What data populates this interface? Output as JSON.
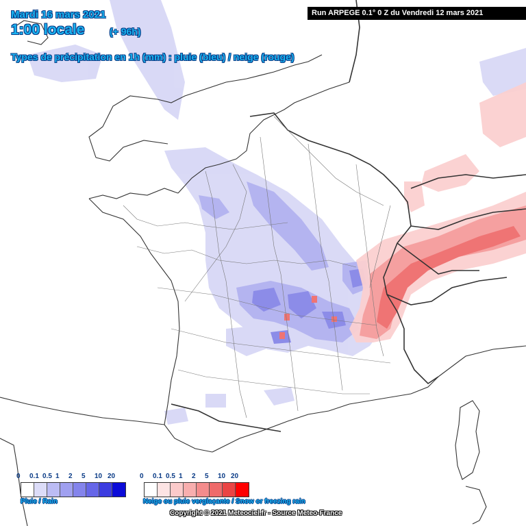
{
  "header": {
    "date": "Mardi 16 mars 2021",
    "time": "1:00 locale",
    "offset": "(+ 96h)",
    "subtitle": "Types de précipitation en 1h (mm) : pluie (bleu) / neige (rouge)"
  },
  "run_info": "Run ARPEGE 0.1° 0 Z du Vendredi 12 mars 2021",
  "legend": {
    "rain": {
      "label": "Pluie / Rain",
      "ticks": [
        "0",
        "0.1",
        "0.5",
        "1",
        "2",
        "5",
        "10",
        "20"
      ],
      "colors": [
        "#ffffff",
        "#dcdcf8",
        "#bcbcf4",
        "#a0a0f0",
        "#8484ec",
        "#6666e8",
        "#3c3ce0",
        "#0b0bd8"
      ]
    },
    "snow": {
      "label": "Neige ou pluie verglaçante / Snow or freezing rain",
      "ticks": [
        "0",
        "0.1",
        "0.5",
        "1",
        "2",
        "5",
        "10",
        "20"
      ],
      "colors": [
        "#ffffff",
        "#fde4e4",
        "#fbcaca",
        "#f8aeae",
        "#f48c8c",
        "#ef6a6a",
        "#ea4444",
        "#ff0000"
      ]
    }
  },
  "copyright": "Copyright © 2021 Meteociel.fr - Source Meteo-France",
  "map_colors": {
    "rain_light": "#d8d8f6",
    "rain_mid": "#b4b4f0",
    "rain_strong": "#8c8ce8",
    "snow_light": "#fbd0d0",
    "snow_mid": "#f5a0a0",
    "snow_strong": "#ef7474",
    "border": "#333333",
    "dept_line": "#777777"
  }
}
